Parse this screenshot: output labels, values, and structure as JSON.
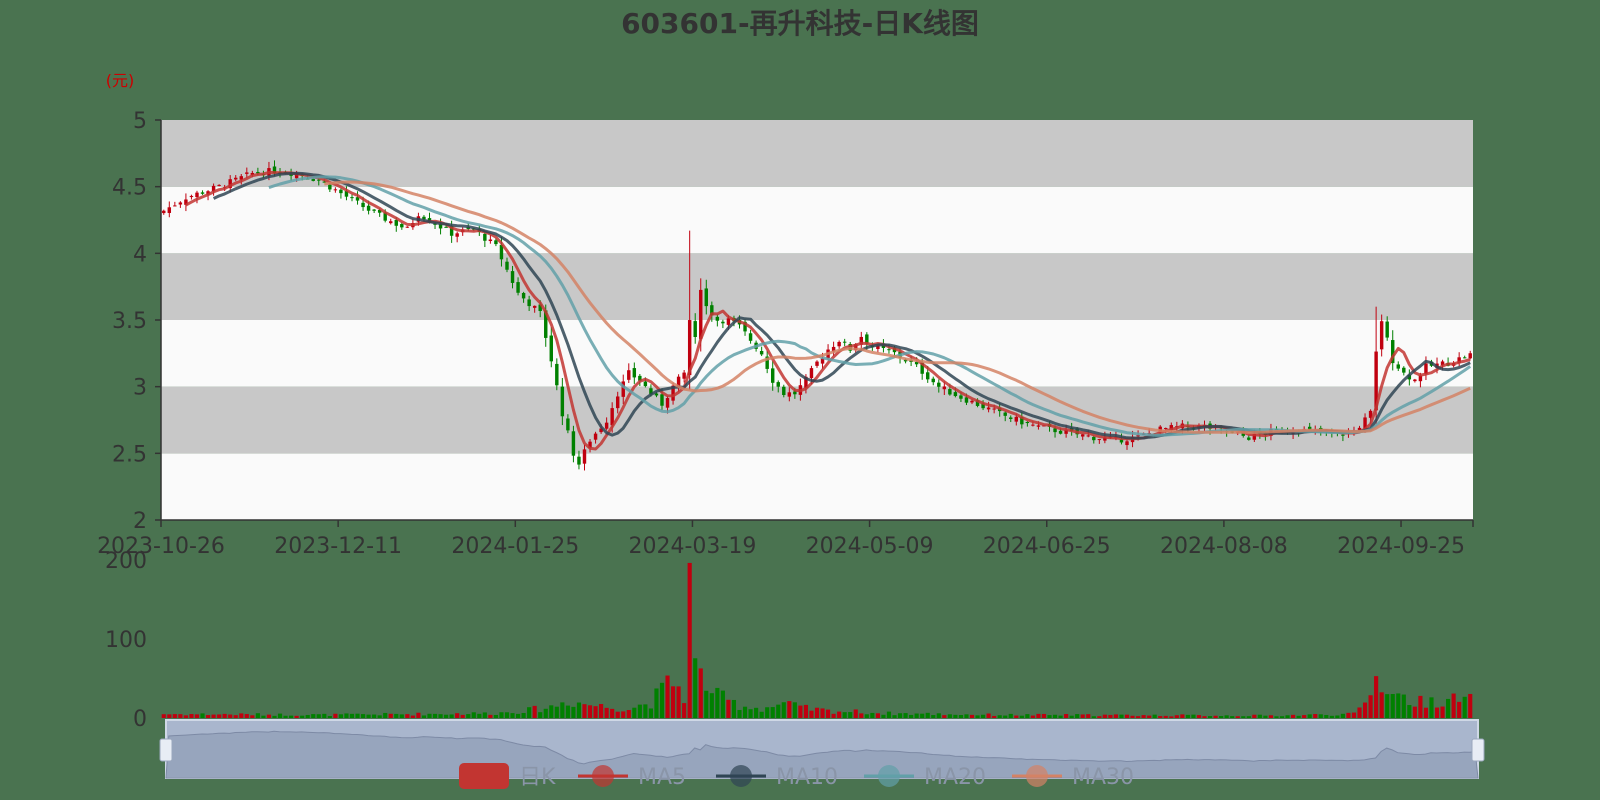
{
  "chart_data": {
    "type": "candlestick",
    "title": "603601-再升科技-日K线图",
    "unit_label": "(元)",
    "price_axis": {
      "ylim": [
        2,
        5
      ],
      "ticks": [
        "2",
        "2.5",
        "3",
        "3.5",
        "4",
        "4.5",
        "5"
      ]
    },
    "volume_axis": {
      "ylim": [
        0,
        200
      ],
      "ticks": [
        "0",
        "100",
        "200"
      ]
    },
    "x_tick_labels": [
      "2023-10-26",
      "2023-12-11",
      "2024-01-25",
      "2024-03-19",
      "2024-05-09",
      "2024-06-25",
      "2024-08-08",
      "2024-09-25"
    ],
    "trading_days": 237,
    "x_tick_every": 32,
    "legend": [
      {
        "name": "日K",
        "color": "#c23531"
      },
      {
        "name": "MA5",
        "color": "#c23531"
      },
      {
        "name": "MA10",
        "color": "#2f4554"
      },
      {
        "name": "MA20",
        "color": "#61a0a8"
      },
      {
        "name": "MA30",
        "color": "#d48265"
      }
    ],
    "colors": {
      "up": "#c0000f",
      "down": "#008000",
      "ma5": "#c23531",
      "ma10": "#2f4554",
      "ma20": "#61a0a8",
      "ma30": "#d48265",
      "band_dark": "#c8c8c8",
      "band_light": "#fafafa"
    },
    "close_keyframes": [
      [
        0,
        4.32
      ],
      [
        4,
        4.42
      ],
      [
        10,
        4.5
      ],
      [
        16,
        4.6
      ],
      [
        20,
        4.62
      ],
      [
        24,
        4.6
      ],
      [
        28,
        4.55
      ],
      [
        32,
        4.45
      ],
      [
        38,
        4.3
      ],
      [
        44,
        4.18
      ],
      [
        46,
        4.3
      ],
      [
        52,
        4.15
      ],
      [
        56,
        4.18
      ],
      [
        60,
        4.05
      ],
      [
        64,
        3.7
      ],
      [
        68,
        3.55
      ],
      [
        70,
        3.2
      ],
      [
        72,
        2.8
      ],
      [
        74,
        2.5
      ],
      [
        75,
        2.42
      ],
      [
        77,
        2.6
      ],
      [
        80,
        2.75
      ],
      [
        82,
        2.95
      ],
      [
        84,
        3.1
      ],
      [
        86,
        3.05
      ],
      [
        88,
        2.95
      ],
      [
        90,
        2.87
      ],
      [
        92,
        3.0
      ],
      [
        94,
        3.1
      ],
      [
        95,
        3.5
      ],
      [
        96,
        3.35
      ],
      [
        97,
        3.75
      ],
      [
        98,
        3.6
      ],
      [
        100,
        3.5
      ],
      [
        102,
        3.5
      ],
      [
        104,
        3.45
      ],
      [
        106,
        3.35
      ],
      [
        108,
        3.25
      ],
      [
        110,
        3.05
      ],
      [
        112,
        2.95
      ],
      [
        114,
        2.95
      ],
      [
        116,
        3.05
      ],
      [
        118,
        3.18
      ],
      [
        120,
        3.28
      ],
      [
        122,
        3.35
      ],
      [
        124,
        3.28
      ],
      [
        126,
        3.38
      ],
      [
        128,
        3.3
      ],
      [
        132,
        3.25
      ],
      [
        136,
        3.15
      ],
      [
        140,
        3.0
      ],
      [
        144,
        2.92
      ],
      [
        148,
        2.85
      ],
      [
        152,
        2.78
      ],
      [
        156,
        2.72
      ],
      [
        160,
        2.68
      ],
      [
        164,
        2.65
      ],
      [
        168,
        2.62
      ],
      [
        172,
        2.6
      ],
      [
        176,
        2.62
      ],
      [
        180,
        2.68
      ],
      [
        184,
        2.7
      ],
      [
        188,
        2.7
      ],
      [
        192,
        2.66
      ],
      [
        196,
        2.62
      ],
      [
        200,
        2.66
      ],
      [
        204,
        2.68
      ],
      [
        208,
        2.66
      ],
      [
        212,
        2.64
      ],
      [
        215,
        2.66
      ],
      [
        218,
        2.8
      ],
      [
        219,
        3.25
      ],
      [
        220,
        3.5
      ],
      [
        222,
        3.2
      ],
      [
        224,
        3.1
      ],
      [
        226,
        3.05
      ],
      [
        228,
        3.15
      ],
      [
        232,
        3.18
      ],
      [
        236,
        3.24
      ]
    ],
    "volume_keyframes": [
      [
        0,
        5
      ],
      [
        30,
        4
      ],
      [
        60,
        6
      ],
      [
        66,
        10
      ],
      [
        70,
        14
      ],
      [
        73,
        22
      ],
      [
        76,
        18
      ],
      [
        80,
        14
      ],
      [
        84,
        12
      ],
      [
        88,
        20
      ],
      [
        90,
        35
      ],
      [
        92,
        48
      ],
      [
        94,
        28
      ],
      [
        95,
        170
      ],
      [
        96,
        65
      ],
      [
        97,
        52
      ],
      [
        98,
        44
      ],
      [
        100,
        28
      ],
      [
        104,
        16
      ],
      [
        108,
        12
      ],
      [
        112,
        18
      ],
      [
        116,
        12
      ],
      [
        120,
        9
      ],
      [
        125,
        8
      ],
      [
        130,
        6
      ],
      [
        150,
        4
      ],
      [
        200,
        3
      ],
      [
        215,
        5
      ],
      [
        217,
        18
      ],
      [
        219,
        50
      ],
      [
        221,
        40
      ],
      [
        223,
        28
      ],
      [
        226,
        20
      ],
      [
        230,
        22
      ],
      [
        236,
        24
      ]
    ]
  }
}
